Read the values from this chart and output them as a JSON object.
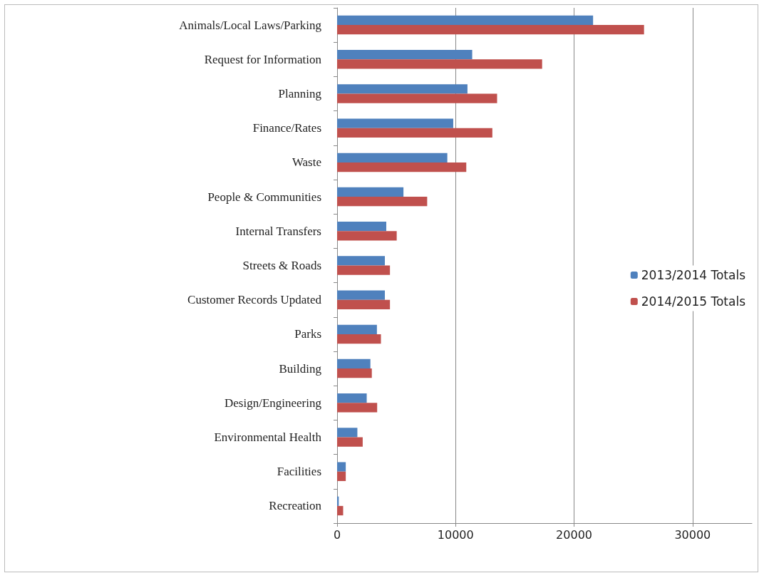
{
  "chart_data": {
    "type": "bar",
    "orientation": "horizontal",
    "categories": [
      "Animals/Local Laws/Parking",
      "Request for Information",
      "Planning",
      "Finance/Rates",
      "Waste",
      "People & Communities",
      "Internal Transfers",
      "Streets & Roads",
      "Customer Records Updated",
      "Parks",
      "Building",
      "Design/Engineering",
      "Environmental Health",
      "Facilities",
      "Recreation"
    ],
    "series": [
      {
        "name": "2013/2014 Totals",
        "color": "#4f81bd",
        "values": [
          21600,
          11400,
          11000,
          9800,
          9300,
          5600,
          4150,
          4030,
          4030,
          3360,
          2810,
          2500,
          1710,
          730,
          140
        ]
      },
      {
        "name": "2014/2015 Totals",
        "color": "#c0504d",
        "values": [
          25900,
          17300,
          13500,
          13100,
          10900,
          7600,
          5030,
          4460,
          4460,
          3700,
          2930,
          3380,
          2160,
          730,
          510
        ]
      }
    ],
    "xlim": [
      0,
      35000
    ],
    "xticks": [
      0,
      10000,
      20000,
      30000
    ],
    "grid": "x",
    "legend": "right"
  }
}
